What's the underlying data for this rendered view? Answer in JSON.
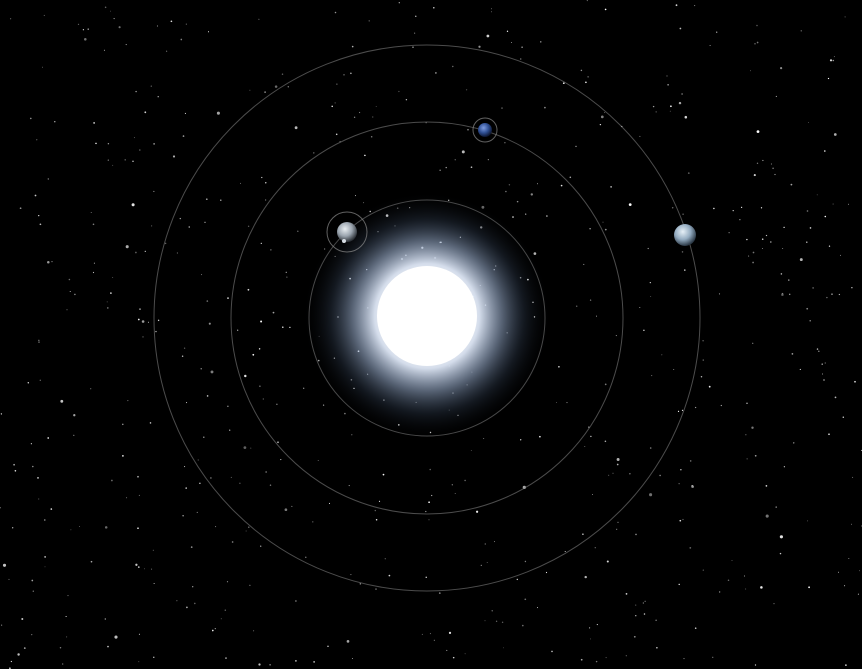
{
  "scene": {
    "background_color": "#000000",
    "star_color": "#ffffff",
    "orbit_color": "#8a8a8a",
    "sun": {
      "core_color": "#ffffff",
      "corona_color": "#b9cbe6",
      "halo_color": "#3d4e66"
    },
    "orbits": [
      {
        "name": "inner-orbit"
      },
      {
        "name": "middle-orbit"
      },
      {
        "name": "outer-orbit"
      }
    ],
    "planets": [
      {
        "name": "planet-gray-moon",
        "orbit": "inner-orbit",
        "color": "#b8c0c8",
        "selected": true
      },
      {
        "name": "planet-blue",
        "orbit": "middle-orbit",
        "color": "#3a5fa8",
        "selected": true
      },
      {
        "name": "planet-pale-blue",
        "orbit": "outer-orbit",
        "color": "#aec4d6",
        "selected": false
      }
    ]
  }
}
